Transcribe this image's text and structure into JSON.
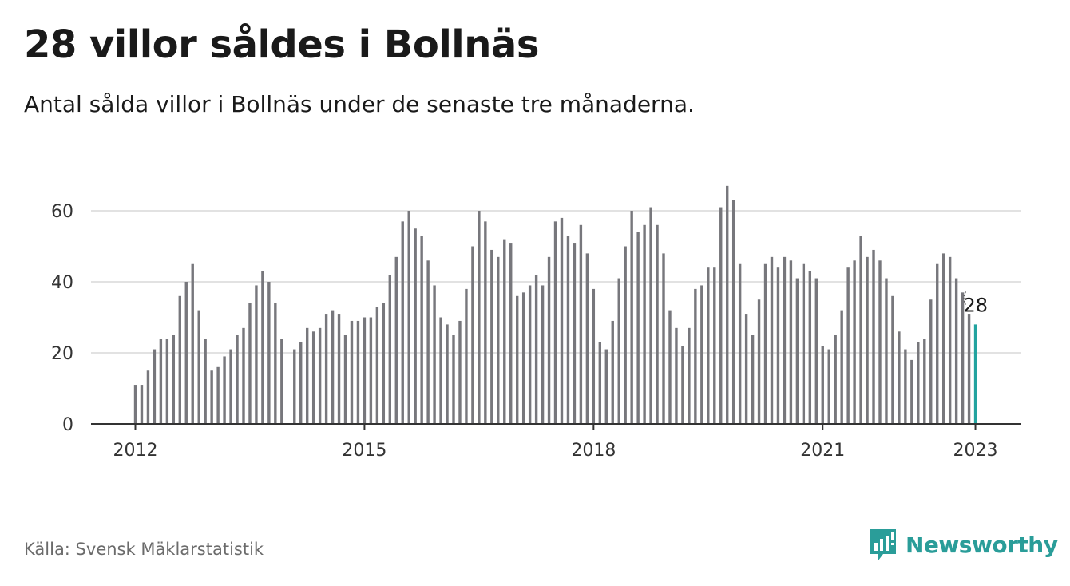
{
  "title": "28 villor såldes i Bollnäs",
  "subtitle": "Antal sålda villor i Bollnäs under de senaste tre månaderna.",
  "source": "Källa: Svensk Mäklarstatistik",
  "brand": {
    "name": "Newsworthy",
    "icon": "chart-speech-bubble-icon",
    "color": "#2a9d99"
  },
  "colors": {
    "bar": "#77777c",
    "highlight": "#22a39f",
    "gridline": "#d9d9d9",
    "axis": "#333333"
  },
  "chart_data": {
    "type": "bar",
    "title": "28 villor såldes i Bollnäs",
    "subtitle": "Antal sålda villor i Bollnäs under de senaste tre månaderna.",
    "xlabel": "",
    "ylabel": "",
    "ylim": [
      0,
      70
    ],
    "yticks": [
      0,
      20,
      40,
      60
    ],
    "xtick_labels": [
      "2012",
      "2015",
      "2018",
      "2021",
      "2023"
    ],
    "grid": true,
    "legend": "none",
    "x_start": "2012-01",
    "x_end": "2023-01",
    "interval": "monthly",
    "highlight_label": "28",
    "series": [
      {
        "values": [
          11,
          11,
          15,
          21,
          24,
          24,
          25,
          36,
          40,
          45,
          32,
          24,
          15,
          16,
          19,
          21,
          25,
          27,
          34,
          39,
          43,
          40,
          34,
          24,
          null,
          21,
          23,
          27,
          26,
          27,
          31,
          32,
          31,
          25,
          29,
          29,
          30,
          30,
          33,
          34,
          42,
          47,
          57,
          60,
          55,
          53,
          46,
          39,
          30,
          28,
          25,
          29,
          38,
          50,
          60,
          57,
          49,
          47,
          52,
          51,
          36,
          37,
          39,
          42,
          39,
          47,
          57,
          58,
          53,
          51,
          56,
          48,
          38,
          23,
          21,
          29,
          41,
          50,
          60,
          54,
          56,
          61,
          56,
          48,
          32,
          27,
          22,
          27,
          38,
          39,
          44,
          44,
          61,
          67,
          63,
          45,
          31,
          25,
          35,
          45,
          47,
          44,
          47,
          46,
          41,
          45,
          43,
          41,
          22,
          21,
          25,
          32,
          44,
          46,
          53,
          47,
          49,
          46,
          41,
          36,
          26,
          21,
          18,
          23,
          24,
          35,
          45,
          48,
          47,
          41,
          37,
          31,
          28
        ]
      }
    ]
  }
}
